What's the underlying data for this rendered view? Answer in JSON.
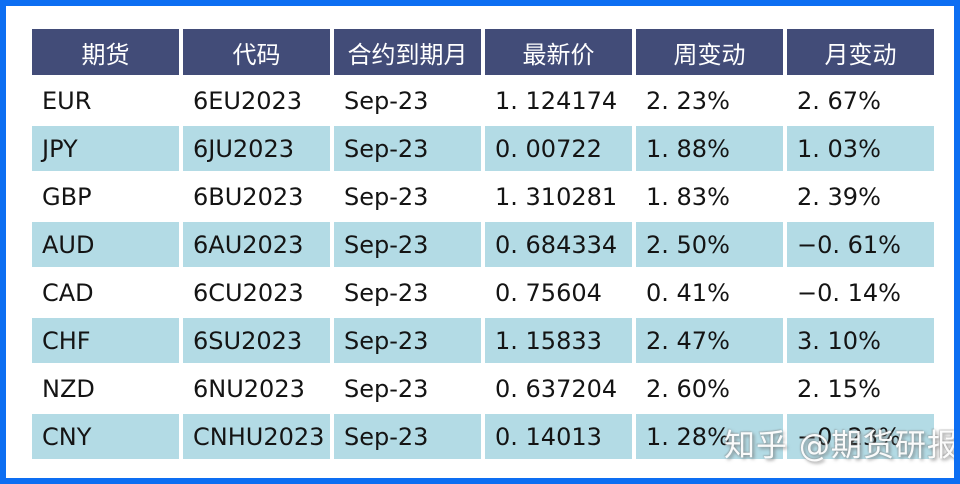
{
  "colors": {
    "frame_border": "#0d6ef2",
    "header_bg": "#424c78",
    "header_text": "#ffffff",
    "row_alt_bg": "#b3dbe5",
    "cell_text": "#141414",
    "up_color": "#de2023",
    "down_color": "#2b9c4b"
  },
  "watermark": {
    "text": "知乎 @期货研报"
  },
  "table": {
    "columns": [
      {
        "key": "future",
        "label": "期货"
      },
      {
        "key": "code",
        "label": "代码"
      },
      {
        "key": "expiry",
        "label": "合约到期月"
      },
      {
        "key": "last",
        "label": "最新价"
      },
      {
        "key": "week",
        "label": "周变动"
      },
      {
        "key": "month",
        "label": "月变动"
      }
    ],
    "rows": [
      {
        "future": "EUR",
        "code": "6EU2023",
        "expiry": "Sep-23",
        "last": "1. 124174",
        "week": "2. 23%",
        "week_dir": "up",
        "month": "2. 67%",
        "month_dir": "up"
      },
      {
        "future": "JPY",
        "code": "6JU2023",
        "expiry": "Sep-23",
        "last": "0. 00722",
        "week": "1. 88%",
        "week_dir": "up",
        "month": "1. 03%",
        "month_dir": "up"
      },
      {
        "future": "GBP",
        "code": "6BU2023",
        "expiry": "Sep-23",
        "last": "1. 310281",
        "week": "1. 83%",
        "week_dir": "up",
        "month": "2. 39%",
        "month_dir": "up"
      },
      {
        "future": "AUD",
        "code": "6AU2023",
        "expiry": "Sep-23",
        "last": "0. 684334",
        "week": "2. 50%",
        "week_dir": "up",
        "month": "−0. 61%",
        "month_dir": "down"
      },
      {
        "future": "CAD",
        "code": "6CU2023",
        "expiry": "Sep-23",
        "last": "0. 75604",
        "week": "0. 41%",
        "week_dir": "up",
        "month": "−0. 14%",
        "month_dir": "down"
      },
      {
        "future": "CHF",
        "code": "6SU2023",
        "expiry": "Sep-23",
        "last": "1. 15833",
        "week": "2. 47%",
        "week_dir": "up",
        "month": "3. 10%",
        "month_dir": "up"
      },
      {
        "future": "NZD",
        "code": "6NU2023",
        "expiry": "Sep-23",
        "last": "0. 637204",
        "week": "2. 60%",
        "week_dir": "up",
        "month": "2. 15%",
        "month_dir": "up"
      },
      {
        "future": "CNY",
        "code": "CNHU2023",
        "expiry": "Sep-23",
        "last": "0. 14013",
        "week": "1. 28%",
        "week_dir": "up",
        "month": "−0. 23%",
        "month_dir": "down"
      }
    ]
  },
  "chart_data": {
    "type": "table",
    "title": "",
    "columns": [
      "期货",
      "代码",
      "合约到期月",
      "最新价",
      "周变动",
      "月变动"
    ],
    "rows": [
      [
        "EUR",
        "6EU2023",
        "Sep-23",
        1.124174,
        "2.23%",
        "2.67%"
      ],
      [
        "JPY",
        "6JU2023",
        "Sep-23",
        0.00722,
        "1.88%",
        "1.03%"
      ],
      [
        "GBP",
        "6BU2023",
        "Sep-23",
        1.310281,
        "1.83%",
        "2.39%"
      ],
      [
        "AUD",
        "6AU2023",
        "Sep-23",
        0.684334,
        "2.50%",
        "-0.61%"
      ],
      [
        "CAD",
        "6CU2023",
        "Sep-23",
        0.75604,
        "0.41%",
        "-0.14%"
      ],
      [
        "CHF",
        "6SU2023",
        "Sep-23",
        1.15833,
        "2.47%",
        "3.10%"
      ],
      [
        "NZD",
        "6NU2023",
        "Sep-23",
        0.637204,
        "2.60%",
        "2.15%"
      ],
      [
        "CNY",
        "CNHU2023",
        "Sep-23",
        0.14013,
        "1.28%",
        "-0.23%"
      ]
    ],
    "color_coding": {
      "red": "positive change",
      "green": "negative change"
    }
  }
}
